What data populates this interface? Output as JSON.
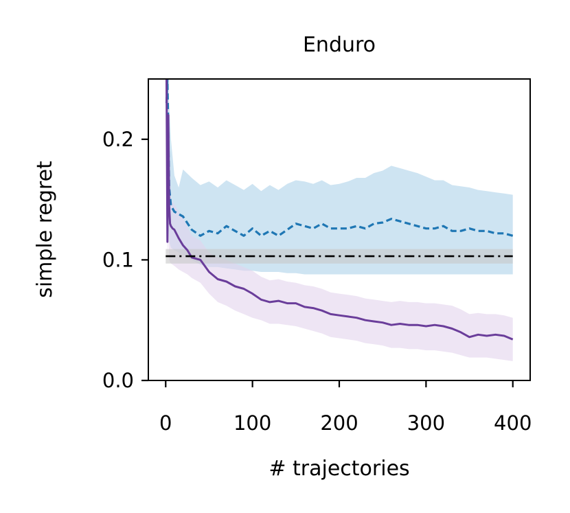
{
  "chart_data": {
    "type": "line",
    "title": "Enduro",
    "xlabel": "# trajectories",
    "ylabel": "simple regret",
    "xlim": [
      -20,
      420
    ],
    "ylim": [
      0,
      0.25
    ],
    "xticks": [
      0,
      100,
      200,
      300,
      400
    ],
    "yticks": [
      0,
      0.1,
      0.2
    ],
    "xtick_labels": [
      "0",
      "100",
      "200",
      "300",
      "400"
    ],
    "ytick_labels": [
      "0.0",
      "0.1",
      "0.2"
    ],
    "grid": false,
    "legend": "none",
    "series": [
      {
        "style": "dashed",
        "color": "#1f77b4",
        "band_color": "#aed2ea",
        "x": [
          1,
          2,
          4,
          6,
          10,
          15,
          20,
          30,
          40,
          50,
          60,
          70,
          80,
          90,
          100,
          110,
          120,
          130,
          140,
          150,
          160,
          170,
          180,
          190,
          200,
          210,
          220,
          230,
          240,
          250,
          260,
          270,
          280,
          290,
          300,
          310,
          320,
          330,
          340,
          350,
          360,
          370,
          380,
          390,
          400
        ],
        "y": [
          0.23,
          0.25,
          0.16,
          0.145,
          0.14,
          0.138,
          0.136,
          0.125,
          0.12,
          0.124,
          0.122,
          0.128,
          0.124,
          0.12,
          0.126,
          0.12,
          0.124,
          0.12,
          0.125,
          0.13,
          0.128,
          0.126,
          0.13,
          0.126,
          0.126,
          0.126,
          0.128,
          0.126,
          0.13,
          0.131,
          0.134,
          0.132,
          0.13,
          0.128,
          0.126,
          0.126,
          0.128,
          0.124,
          0.124,
          0.126,
          0.124,
          0.124,
          0.122,
          0.122,
          0.12
        ],
        "y_lower": [
          0.16,
          0.14,
          0.115,
          0.11,
          0.108,
          0.106,
          0.104,
          0.1,
          0.096,
          0.094,
          0.094,
          0.093,
          0.092,
          0.091,
          0.091,
          0.09,
          0.09,
          0.09,
          0.089,
          0.089,
          0.088,
          0.088,
          0.088,
          0.088,
          0.088,
          0.088,
          0.088,
          0.088,
          0.088,
          0.088,
          0.088,
          0.088,
          0.088,
          0.088,
          0.088,
          0.088,
          0.088,
          0.088,
          0.088,
          0.088,
          0.088,
          0.088,
          0.088,
          0.088,
          0.088
        ],
        "y_upper": [
          0.25,
          0.25,
          0.23,
          0.2,
          0.17,
          0.16,
          0.175,
          0.168,
          0.162,
          0.165,
          0.16,
          0.166,
          0.162,
          0.158,
          0.163,
          0.157,
          0.162,
          0.158,
          0.163,
          0.166,
          0.165,
          0.163,
          0.166,
          0.162,
          0.163,
          0.165,
          0.168,
          0.168,
          0.172,
          0.174,
          0.178,
          0.176,
          0.174,
          0.172,
          0.169,
          0.166,
          0.166,
          0.162,
          0.161,
          0.16,
          0.158,
          0.157,
          0.156,
          0.155,
          0.154
        ]
      },
      {
        "style": "solid",
        "color": "#6a3d9a",
        "band_color": "#e3d3ec",
        "x": [
          1,
          2,
          3,
          4,
          5,
          6,
          8,
          10,
          15,
          20,
          25,
          30,
          40,
          50,
          60,
          70,
          80,
          90,
          100,
          110,
          120,
          130,
          140,
          150,
          160,
          170,
          180,
          190,
          200,
          210,
          220,
          230,
          240,
          250,
          260,
          270,
          280,
          290,
          300,
          310,
          320,
          330,
          340,
          350,
          360,
          370,
          380,
          390,
          400
        ],
        "y": [
          0.25,
          0.115,
          0.22,
          0.145,
          0.13,
          0.128,
          0.126,
          0.125,
          0.118,
          0.112,
          0.108,
          0.102,
          0.1,
          0.09,
          0.084,
          0.082,
          0.078,
          0.076,
          0.072,
          0.067,
          0.065,
          0.066,
          0.064,
          0.064,
          0.061,
          0.06,
          0.058,
          0.055,
          0.054,
          0.053,
          0.052,
          0.05,
          0.049,
          0.048,
          0.046,
          0.047,
          0.046,
          0.046,
          0.045,
          0.046,
          0.045,
          0.043,
          0.04,
          0.036,
          0.038,
          0.037,
          0.038,
          0.037,
          0.034
        ],
        "y_lower": [
          0.2,
          0.1,
          0.12,
          0.1,
          0.098,
          0.097,
          0.096,
          0.095,
          0.092,
          0.09,
          0.088,
          0.085,
          0.081,
          0.072,
          0.065,
          0.062,
          0.058,
          0.055,
          0.052,
          0.05,
          0.047,
          0.047,
          0.046,
          0.045,
          0.043,
          0.041,
          0.039,
          0.036,
          0.035,
          0.034,
          0.033,
          0.031,
          0.03,
          0.029,
          0.027,
          0.027,
          0.026,
          0.026,
          0.025,
          0.025,
          0.024,
          0.023,
          0.021,
          0.019,
          0.019,
          0.019,
          0.018,
          0.017,
          0.016
        ],
        "y_upper": [
          0.25,
          0.25,
          0.25,
          0.2,
          0.17,
          0.15,
          0.148,
          0.146,
          0.14,
          0.135,
          0.128,
          0.12,
          0.116,
          0.106,
          0.102,
          0.1,
          0.097,
          0.094,
          0.091,
          0.086,
          0.083,
          0.084,
          0.082,
          0.081,
          0.079,
          0.078,
          0.076,
          0.073,
          0.072,
          0.071,
          0.07,
          0.068,
          0.067,
          0.066,
          0.065,
          0.066,
          0.065,
          0.065,
          0.064,
          0.064,
          0.063,
          0.062,
          0.059,
          0.055,
          0.056,
          0.055,
          0.055,
          0.054,
          0.052
        ]
      },
      {
        "style": "dashdot",
        "color": "#000000",
        "band_color": "#c8c8c8",
        "x": [
          0,
          400
        ],
        "y": [
          0.103,
          0.103
        ],
        "y_lower": [
          0.097,
          0.097
        ],
        "y_upper": [
          0.109,
          0.109
        ]
      }
    ]
  }
}
